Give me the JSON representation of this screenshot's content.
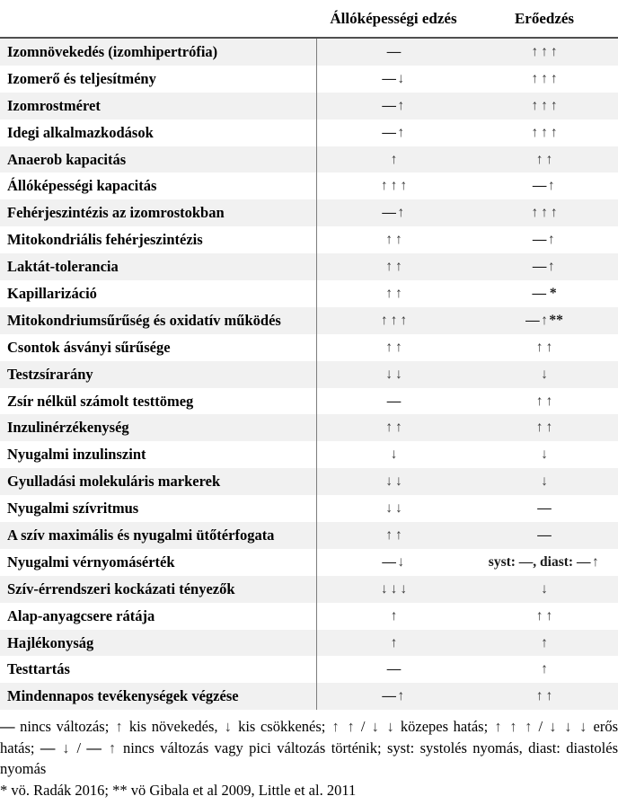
{
  "header": {
    "col_endurance": "Állóképességi edzés",
    "col_strength": "Erőedzés"
  },
  "rows": [
    {
      "label": "Izomnövekedés (izomhipertrófia)",
      "endurance": "—",
      "strength": "↑ ↑ ↑"
    },
    {
      "label": "Izomerő és teljesítmény",
      "endurance": "— ↓",
      "strength": "↑ ↑ ↑"
    },
    {
      "label": "Izomrostméret",
      "endurance": "— ↑",
      "strength": "↑ ↑ ↑"
    },
    {
      "label": "Idegi alkalmazkodások",
      "endurance": "— ↑",
      "strength": "↑ ↑ ↑"
    },
    {
      "label": "Anaerob kapacitás",
      "endurance": "↑",
      "strength": "↑ ↑"
    },
    {
      "label": "Állóképességi kapacitás",
      "endurance": "↑ ↑ ↑",
      "strength": "— ↑"
    },
    {
      "label": "Fehérjeszintézis az izomrostokban",
      "endurance": "— ↑",
      "strength": "↑ ↑ ↑"
    },
    {
      "label": "Mitokondriális fehérjeszintézis",
      "endurance": "↑ ↑",
      "strength": "— ↑"
    },
    {
      "label": "Laktát-tolerancia",
      "endurance": "↑ ↑",
      "strength": "— ↑"
    },
    {
      "label": "Kapillarizáció",
      "endurance": "↑ ↑",
      "strength": "— *"
    },
    {
      "label": "Mitokondriumsűrűség és oxidatív működés",
      "endurance": "↑ ↑ ↑",
      "strength": "— ↑ **"
    },
    {
      "label": "Csontok ásványi sűrűsége",
      "endurance": "↑ ↑",
      "strength": "↑ ↑"
    },
    {
      "label": "Testzsírarány",
      "endurance": "↓ ↓",
      "strength": "↓"
    },
    {
      "label": "Zsír nélkül számolt testtömeg",
      "endurance": "—",
      "strength": "↑ ↑"
    },
    {
      "label": "Inzulinérzékenység",
      "endurance": "↑ ↑",
      "strength": "↑ ↑"
    },
    {
      "label": "Nyugalmi inzulinszint",
      "endurance": "↓",
      "strength": "↓"
    },
    {
      "label": "Gyulladási molekuláris markerek",
      "endurance": "↓ ↓",
      "strength": "↓"
    },
    {
      "label": "Nyugalmi szívritmus",
      "endurance": "↓ ↓",
      "strength": "—"
    },
    {
      "label": "A szív maximális és nyugalmi ütőtérfogata",
      "endurance": "↑ ↑",
      "strength": "—"
    },
    {
      "label": "Nyugalmi vérnyomásérték",
      "endurance": "— ↓",
      "strength": "syst: —, diast: — ↑"
    },
    {
      "label": "Szív-érrendszeri kockázati tényezők",
      "endurance": "↓ ↓ ↓",
      "strength": "↓"
    },
    {
      "label": "Alap-anyagcsere rátája",
      "endurance": "↑",
      "strength": "↑ ↑"
    },
    {
      "label": "Hajlékonyság",
      "endurance": "↑",
      "strength": "↑"
    },
    {
      "label": "Testtartás",
      "endurance": "—",
      "strength": "↑"
    },
    {
      "label": "Mindennapos tevékenységek végzése",
      "endurance": "— ↑",
      "strength": "↑ ↑"
    }
  ],
  "legend": "— nincs változás; ↑ kis növekedés, ↓ kis csökkenés; ↑ ↑ / ↓ ↓ közepes hatás; ↑ ↑ ↑ / ↓ ↓ ↓ erős hatás; — ↓ / — ↑ nincs változás vagy pici változás történik; syst: systolés nyomás, diast: diastolés nyomás",
  "footnote": "* vö. Radák 2016; ** vö Gibala et al 2009, Little et al. 2011"
}
